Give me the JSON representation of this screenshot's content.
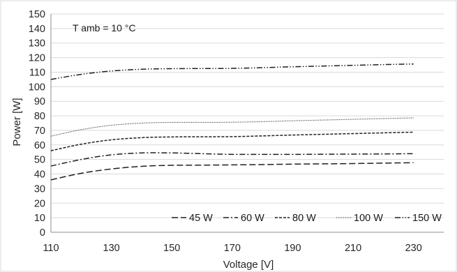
{
  "chart_data": {
    "type": "line",
    "title": "",
    "xlabel": "Voltage  [V]",
    "ylabel": "Power [W]",
    "annotation": "T amb = 10 °C",
    "xlim": [
      110,
      240
    ],
    "ylim": [
      0,
      150
    ],
    "x_ticks": [
      110,
      130,
      150,
      170,
      190,
      210,
      230
    ],
    "y_ticks": [
      0,
      10,
      20,
      30,
      40,
      50,
      60,
      70,
      80,
      90,
      100,
      110,
      120,
      130,
      140,
      150
    ],
    "grid": "horizontal",
    "legend_position": "bottom-right",
    "x": [
      110,
      120,
      130,
      140,
      150,
      160,
      170,
      180,
      190,
      200,
      210,
      220,
      230
    ],
    "series": [
      {
        "name": "45 W",
        "style": "dashed",
        "values": [
          36,
          40.5,
          43.5,
          45.3,
          46,
          46.1,
          46.3,
          46.5,
          46.8,
          47,
          47.2,
          47.5,
          47.8
        ]
      },
      {
        "name": "60 W",
        "style": "dash-dot",
        "values": [
          45.5,
          50,
          53.2,
          54.5,
          54.5,
          54,
          53.5,
          53.5,
          53.5,
          53.6,
          53.7,
          53.8,
          54
        ]
      },
      {
        "name": "80 W",
        "style": "short-dash",
        "values": [
          56,
          60.5,
          63.5,
          65,
          65.5,
          65.6,
          65.7,
          66.2,
          66.8,
          67.3,
          67.8,
          68.3,
          68.8
        ]
      },
      {
        "name": "100 W",
        "style": "dotted",
        "values": [
          66,
          70.5,
          73.5,
          75,
          75.5,
          75.5,
          75.6,
          76,
          76.6,
          77.1,
          77.6,
          78.1,
          78.6
        ]
      },
      {
        "name": "150 W",
        "style": "dash-dot-dot",
        "values": [
          105,
          108.5,
          110.8,
          112,
          112.4,
          112.5,
          112.6,
          113.1,
          113.7,
          114.2,
          114.7,
          115.2,
          115.6
        ]
      }
    ]
  }
}
